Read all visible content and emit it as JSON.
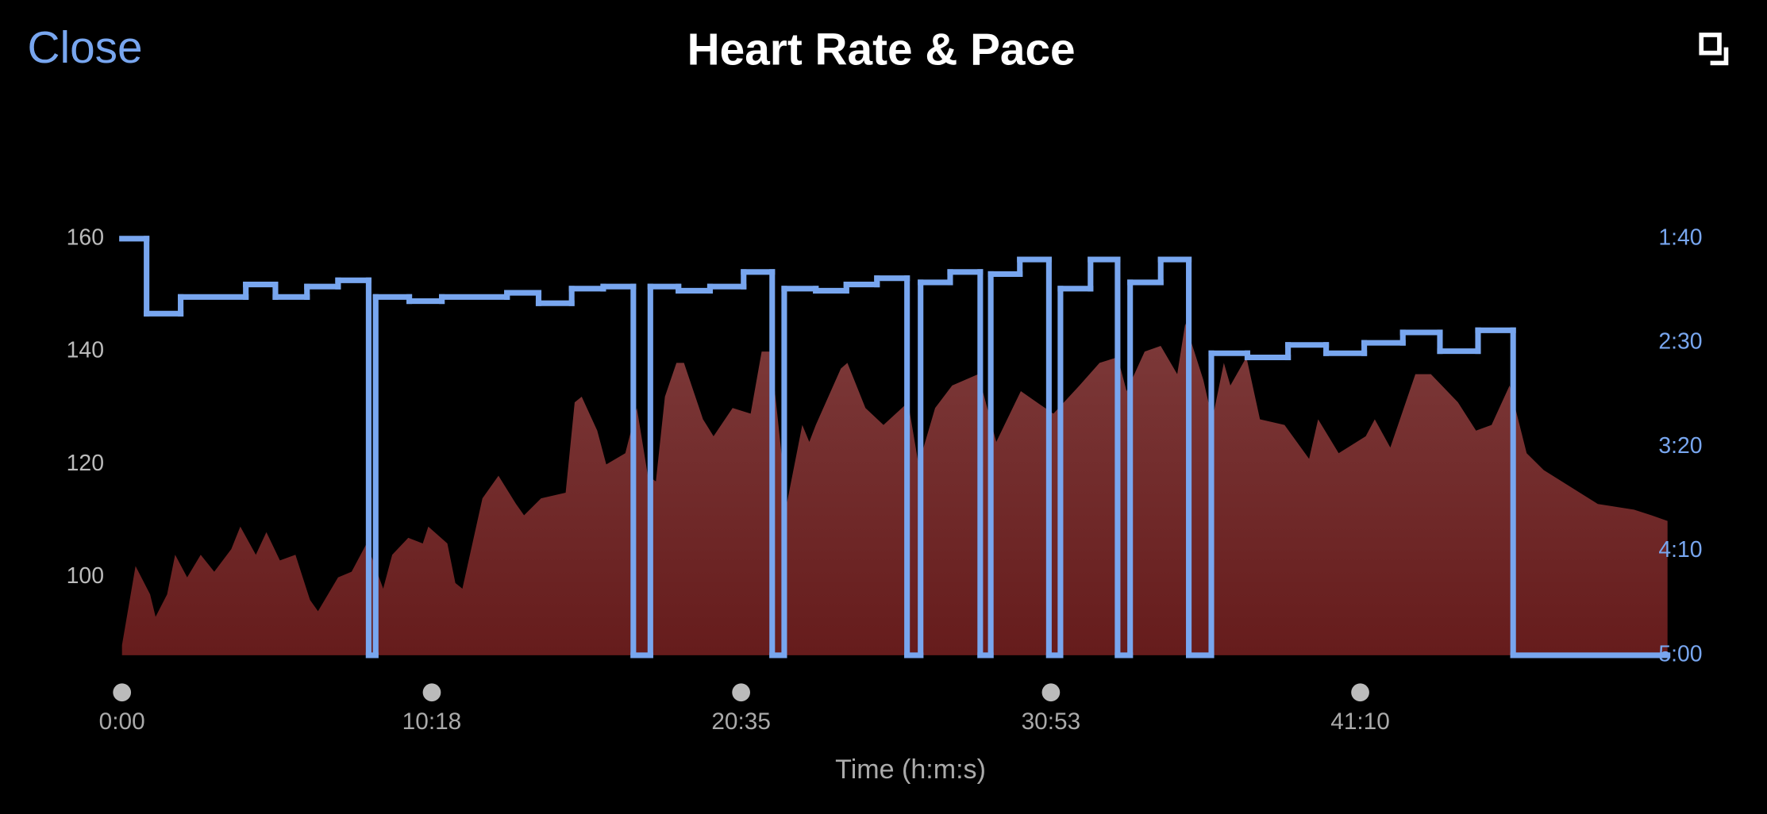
{
  "header": {
    "close": "Close"
  },
  "chart_data": {
    "type": "area-step",
    "title": "Heart Rate & Pace",
    "xlabel": "Time (h:m:s)",
    "xlim": [
      0,
      3083
    ],
    "xticks": [
      {
        "value": 0,
        "label": "0:00"
      },
      {
        "value": 618,
        "label": "10:18"
      },
      {
        "value": 1235,
        "label": "20:35"
      },
      {
        "value": 1853,
        "label": "30:53"
      },
      {
        "value": 2470,
        "label": "41:10"
      }
    ],
    "ylim": [
      86.2,
      160
    ],
    "yticks": [
      100,
      120,
      140,
      160
    ],
    "y2lim": [
      300,
      100
    ],
    "y2ticks": [
      {
        "value": 100,
        "label": "1:40"
      },
      {
        "value": 150,
        "label": "2:30"
      },
      {
        "value": 200,
        "label": "3:20"
      },
      {
        "value": 250,
        "label": "4:10"
      },
      {
        "value": 300,
        "label": "5:00"
      }
    ],
    "series": [
      {
        "type": "area",
        "color": "#7a3434",
        "x": [
          0,
          27,
          56,
          67,
          90,
          106,
          130,
          157,
          184,
          218,
          236,
          267,
          288,
          315,
          346,
          375,
          391,
          431,
          458,
          488,
          521,
          539,
          571,
          600,
          611,
          649,
          665,
          679,
          719,
          751,
          786,
          802,
          836,
          885,
          903,
          917,
          948,
          966,
          1004,
          1027,
          1049,
          1065,
          1083,
          1106,
          1121,
          1159,
          1180,
          1218,
          1254,
          1276,
          1294,
          1326,
          1357,
          1371,
          1384,
          1434,
          1447,
          1483,
          1519,
          1568,
          1589,
          1622,
          1656,
          1708,
          1744,
          1793,
          1825,
          1858,
          1910,
          1950,
          1986,
          2004,
          2040,
          2072,
          2105,
          2121,
          2157,
          2175,
          2198,
          2211,
          2243,
          2270,
          2319,
          2368,
          2386,
          2427,
          2481,
          2499,
          2530,
          2580,
          2611,
          2665,
          2701,
          2732,
          2768,
          2802,
          2836,
          2890,
          2944,
          3016,
          3051,
          3083
        ],
        "values": [
          88,
          102,
          97,
          93,
          97,
          104,
          100,
          104,
          101,
          105,
          109,
          104,
          108,
          103,
          104,
          96,
          94,
          100,
          101,
          106,
          98,
          104,
          107,
          106,
          109,
          106,
          99,
          98,
          114,
          118,
          113,
          111,
          114,
          115,
          131,
          132,
          126,
          120,
          122,
          130,
          118,
          117,
          132,
          138,
          138,
          128,
          125,
          130,
          129,
          140,
          140,
          113,
          127,
          124,
          127,
          137,
          138,
          130,
          127,
          131,
          120,
          130,
          134,
          136,
          124,
          133,
          131,
          129,
          134,
          138,
          139,
          133,
          140,
          141,
          136,
          145,
          135,
          128,
          138,
          134,
          139,
          128,
          127,
          121,
          128,
          122,
          125,
          128,
          123,
          136,
          136,
          131,
          126,
          127,
          134,
          122,
          119,
          116,
          113,
          112,
          111,
          110
        ]
      },
      {
        "type": "step",
        "axis": "y2",
        "color": "#78a6ef",
        "x": [
          0,
          49,
          117,
          247,
          306,
          369,
          431,
          492,
          506,
          573,
          638,
          768,
          831,
          897,
          960,
          1020,
          1054,
          1110,
          1173,
          1240,
          1297,
          1321,
          1384,
          1445,
          1506,
          1566,
          1593,
          1652,
          1712,
          1733,
          1791,
          1849,
          1872,
          1932,
          1986,
          2011,
          2072,
          2128,
          2173,
          2245,
          2326,
          2402,
          2478,
          2555,
          2629,
          2705,
          2775
        ],
        "values": [
          100,
          136,
          128,
          122,
          128,
          123,
          120,
          300,
          128,
          130,
          128,
          126,
          131,
          124,
          123,
          300,
          123,
          125,
          123,
          116,
          300,
          124,
          125,
          122,
          119,
          300,
          121,
          116,
          300,
          117,
          110,
          300,
          124,
          110,
          300,
          121,
          110,
          300,
          155,
          157,
          151,
          155,
          150,
          145,
          154,
          144,
          300
        ]
      }
    ]
  }
}
